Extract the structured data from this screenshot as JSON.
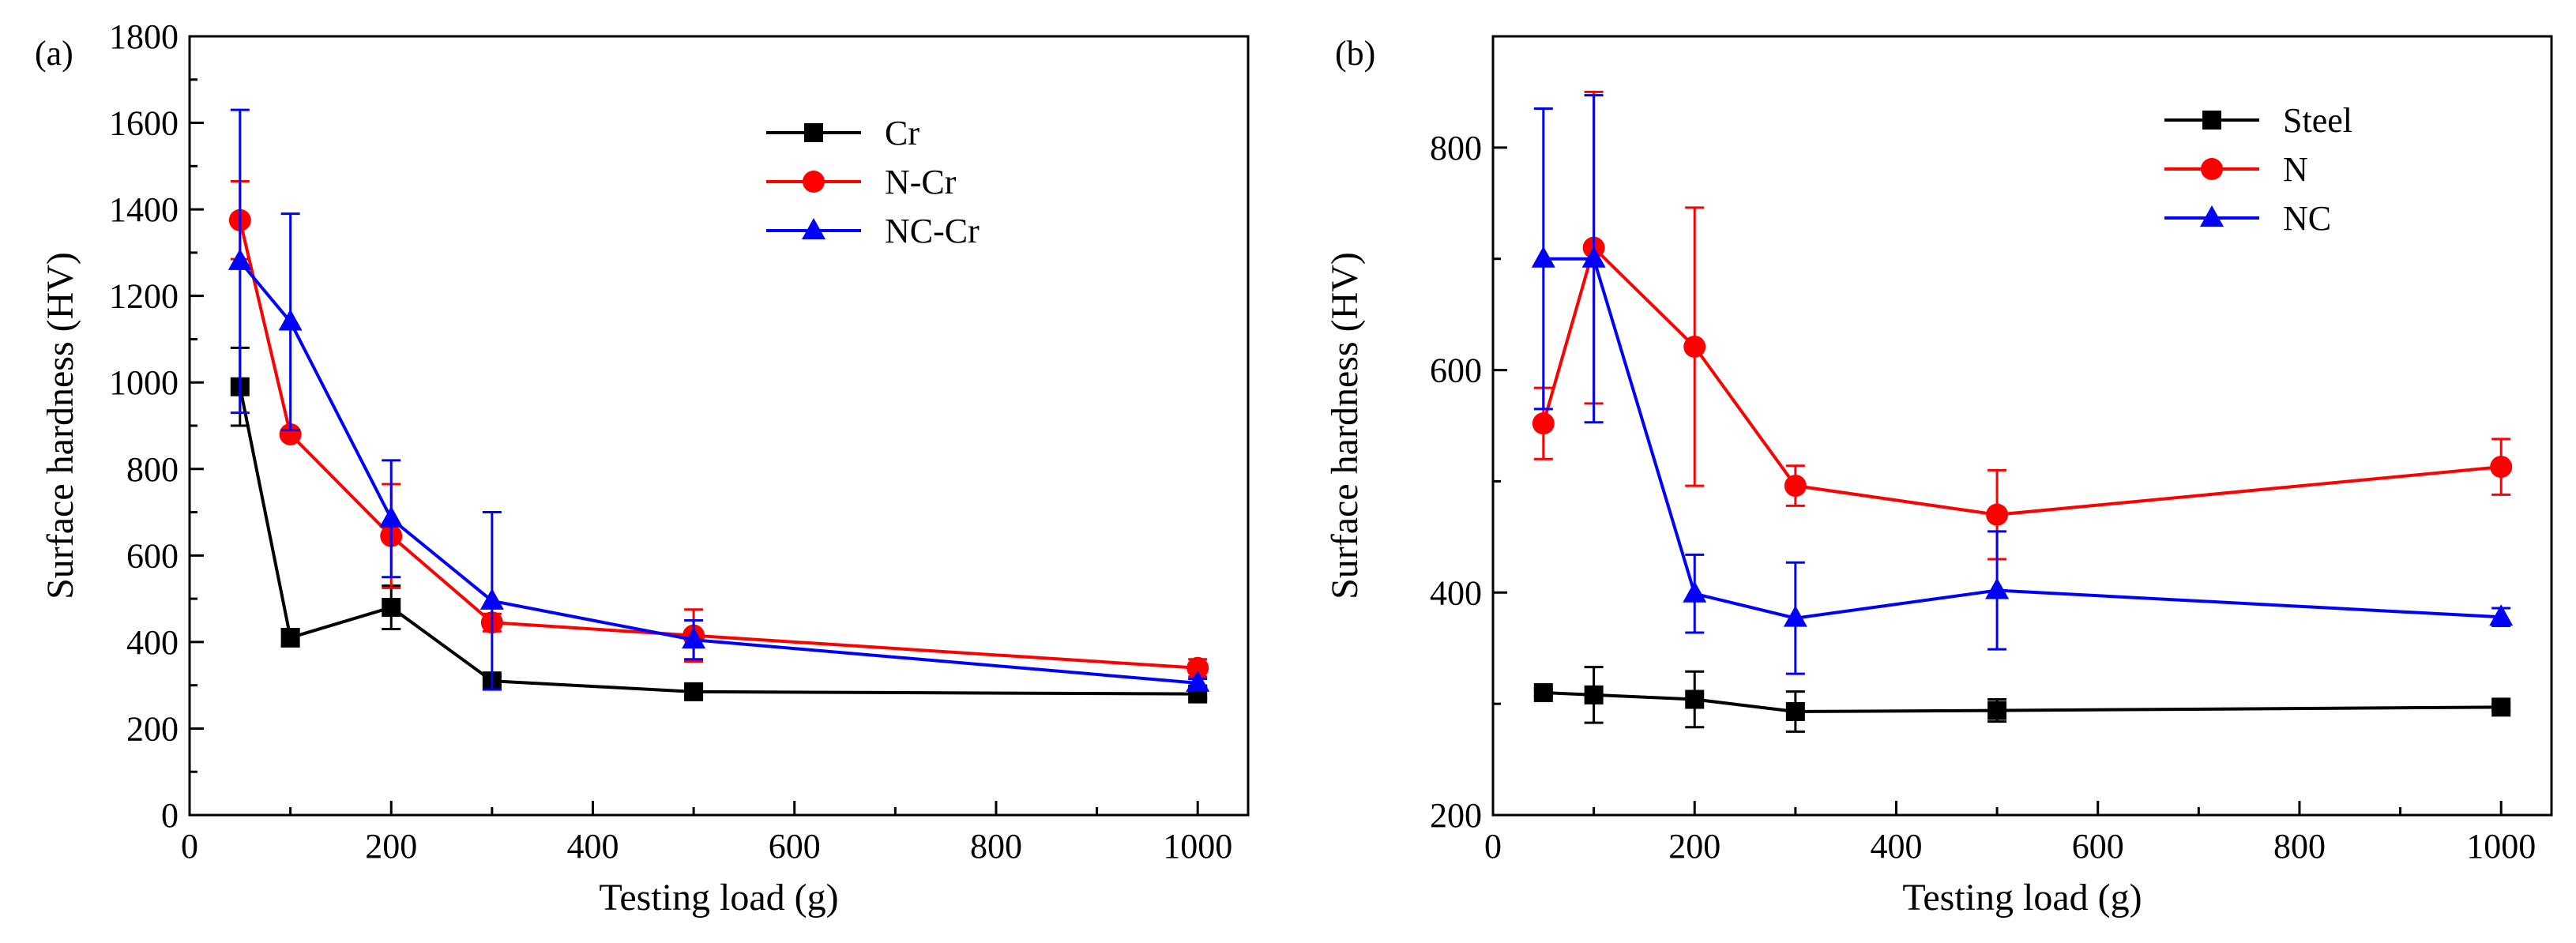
{
  "chart_data": [
    {
      "type": "line",
      "panel_label": "(a)",
      "xlabel": "Testing load (g)",
      "ylabel": "Surface hardness (HV)",
      "xlim": [
        0,
        1050
      ],
      "ylim": [
        0,
        1800
      ],
      "xticks": [
        0,
        200,
        400,
        600,
        800,
        1000
      ],
      "yticks": [
        0,
        200,
        400,
        600,
        800,
        1000,
        1200,
        1400,
        1600,
        1800
      ],
      "xtick_labels": [
        "0",
        "200",
        "400",
        "600",
        "800",
        "1000"
      ],
      "ytick_labels": [
        "0",
        "200",
        "400",
        "600",
        "800",
        "1000",
        "1200",
        "1400",
        "1600",
        "1800"
      ],
      "legend_position": "top-right",
      "series": [
        {
          "name": "Cr",
          "color": "#000000",
          "marker": "square",
          "x": [
            50,
            100,
            200,
            300,
            500,
            1000
          ],
          "values": [
            990,
            410,
            480,
            310,
            285,
            280
          ],
          "errors": [
            90,
            20,
            50,
            10,
            10,
            10
          ]
        },
        {
          "name": "N-Cr",
          "color": "#ff0000",
          "marker": "circle",
          "x": [
            50,
            100,
            200,
            300,
            500,
            1000
          ],
          "values": [
            1375,
            880,
            645,
            445,
            415,
            340
          ],
          "errors": [
            90,
            10,
            120,
            20,
            60,
            20
          ]
        },
        {
          "name": "NC-Cr",
          "color": "#0000ff",
          "marker": "triangle",
          "x": [
            50,
            100,
            200,
            300,
            500,
            1000
          ],
          "values": [
            1280,
            1140,
            685,
            495,
            405,
            305
          ],
          "errors": [
            350,
            250,
            135,
            205,
            45,
            10
          ]
        }
      ]
    },
    {
      "type": "line",
      "panel_label": "(b)",
      "xlabel": "Testing load (g)",
      "ylabel": "Surface hardness (HV)",
      "xlim": [
        0,
        1050
      ],
      "ylim": [
        200,
        900
      ],
      "xticks": [
        0,
        200,
        400,
        600,
        800,
        1000
      ],
      "yticks": [
        200,
        400,
        600,
        800
      ],
      "xtick_labels": [
        "0",
        "200",
        "400",
        "600",
        "800",
        "1000"
      ],
      "ytick_labels": [
        "200",
        "400",
        "600",
        "800"
      ],
      "legend_position": "top-right",
      "series": [
        {
          "name": "Steel",
          "color": "#000000",
          "marker": "square",
          "x": [
            50,
            100,
            200,
            300,
            500,
            1000
          ],
          "values": [
            310,
            308,
            304,
            293,
            294,
            297
          ],
          "errors": [
            3,
            25,
            25,
            18,
            10,
            3
          ]
        },
        {
          "name": "N",
          "color": "#ff0000",
          "marker": "circle",
          "x": [
            50,
            100,
            200,
            300,
            500,
            1000
          ],
          "values": [
            552,
            710,
            621,
            496,
            470,
            513
          ],
          "errors": [
            32,
            140,
            125,
            18,
            40,
            25
          ]
        },
        {
          "name": "NC",
          "color": "#0000ff",
          "marker": "triangle",
          "x": [
            50,
            100,
            200,
            300,
            500,
            1000
          ],
          "values": [
            700,
            700,
            399,
            377,
            402,
            378
          ],
          "errors": [
            135,
            147,
            35,
            50,
            53,
            8
          ]
        }
      ]
    }
  ]
}
